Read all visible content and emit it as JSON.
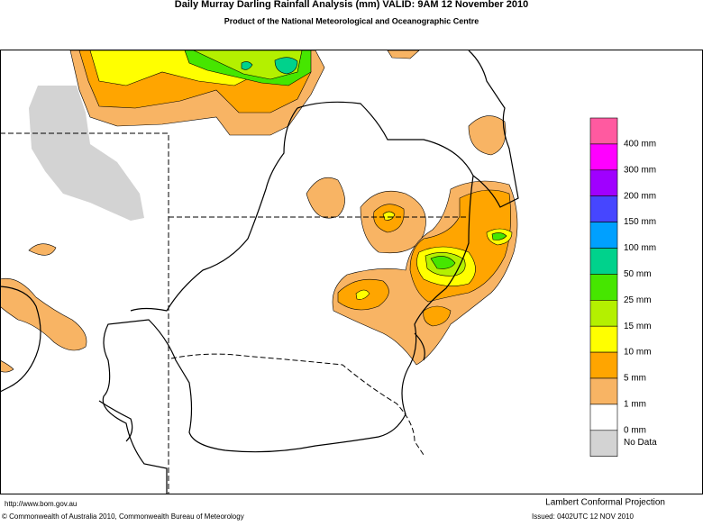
{
  "header": {
    "title": "Daily Murray Darling Rainfall Analysis (mm)  VALID: 9AM 12 November 2010",
    "subtitle": "Product of the National Meteorological and Oceanographic Centre"
  },
  "legend": {
    "items": [
      {
        "label": "400 mm",
        "color": "#ff5aa0"
      },
      {
        "label": "300 mm",
        "color": "#ff00ff"
      },
      {
        "label": "200 mm",
        "color": "#a000ff"
      },
      {
        "label": "150 mm",
        "color": "#4646ff"
      },
      {
        "label": "100 mm",
        "color": "#00a0ff"
      },
      {
        "label": "50 mm",
        "color": "#00d28c"
      },
      {
        "label": "25 mm",
        "color": "#46e600"
      },
      {
        "label": "15 mm",
        "color": "#b4f000"
      },
      {
        "label": "10 mm",
        "color": "#ffff00"
      },
      {
        "label": "5 mm",
        "color": "#ffa500"
      },
      {
        "label": "1 mm",
        "color": "#f8b464"
      },
      {
        "label": "0 mm",
        "color": "#ffffff"
      },
      {
        "label": "No Data",
        "color": "#d3d3d3"
      }
    ]
  },
  "footer": {
    "url": "http://www.bom.gov.au",
    "projection": "Lambert Conformal Projection",
    "copyright": "© Commonwealth of Australia 2010, Commonwealth Bureau of Meteorology",
    "issued": "Issued: 0402UTC 12 NOV 2010"
  }
}
